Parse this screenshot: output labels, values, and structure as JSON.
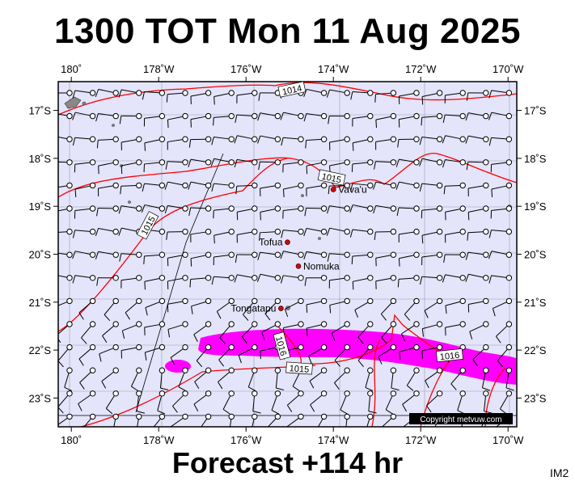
{
  "title": "1300 TOT Mon 11 Aug 2025",
  "footer": "Forecast +114 hr",
  "corner_code": "IM2",
  "copyright": "Copyright metvuw.com",
  "map": {
    "lon_range": [
      -180.3,
      -169.8
    ],
    "lat_range": [
      -23.6,
      -16.4
    ],
    "x_ticks": [
      {
        "lon": -180,
        "label": "180˚"
      },
      {
        "lon": -178,
        "label": "178˚W"
      },
      {
        "lon": -176,
        "label": "176˚W"
      },
      {
        "lon": -174,
        "label": "174˚W"
      },
      {
        "lon": -172,
        "label": "172˚W"
      },
      {
        "lon": -170,
        "label": "170˚W"
      }
    ],
    "y_ticks": [
      {
        "lat": -17,
        "label": "17˚S"
      },
      {
        "lat": -18,
        "label": "18˚S"
      },
      {
        "lat": -19,
        "label": "19˚S"
      },
      {
        "lat": -20,
        "label": "20˚S"
      },
      {
        "lat": -21,
        "label": "21˚S"
      },
      {
        "lat": -22,
        "label": "22˚S"
      },
      {
        "lat": -23,
        "label": "23˚S"
      }
    ],
    "colors": {
      "ocean": "#e4e4fb",
      "isobar": "#ff0000",
      "rain": "#ff00ff",
      "barb": "#000000",
      "place_dot": "#dd0000"
    },
    "isobar_labels": [
      "1014",
      "1015",
      "1015",
      "1016",
      "1015",
      "1016"
    ],
    "places": [
      {
        "name": "Vava'u",
        "lon": -174.0,
        "lat": -18.65
      },
      {
        "name": "Tofua",
        "lon": -175.05,
        "lat": -19.75
      },
      {
        "name": "Nomuka",
        "lon": -174.8,
        "lat": -20.25
      },
      {
        "name": "Tongatapu",
        "lon": -175.2,
        "lat": -21.13
      }
    ]
  }
}
